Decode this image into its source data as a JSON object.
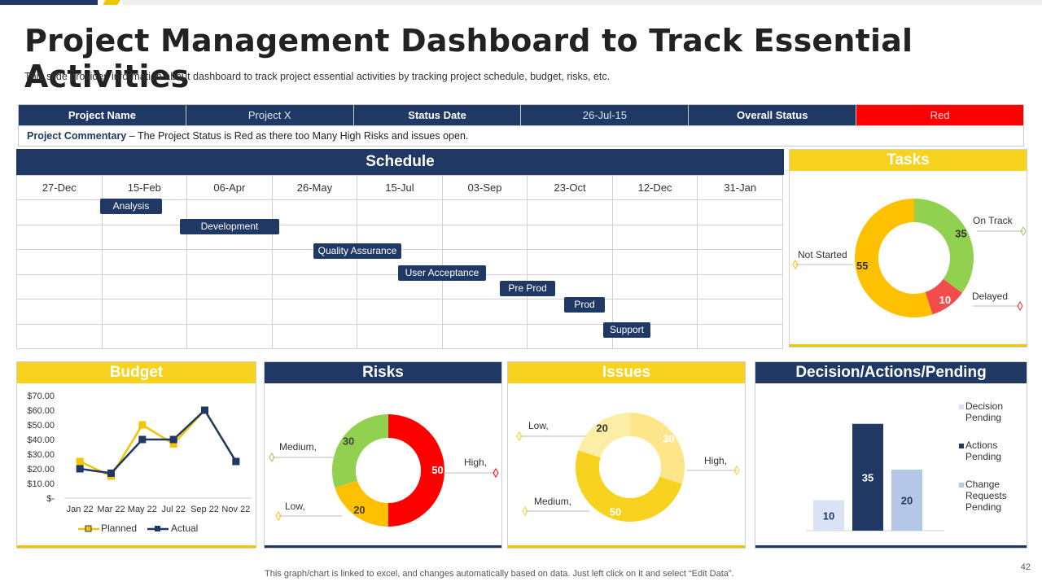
{
  "title": "Project Management Dashboard to Track Essential Activities",
  "subtitle": "This slide provides  information  about dashboard  to track project essential activities  by tracking project schedule, budget, risks, etc.",
  "status": {
    "project_name_label": "Project Name",
    "project_name_value": "Project X",
    "status_date_label": "Status Date",
    "status_date_value": "26-Jul-15",
    "overall_status_label": "Overall Status",
    "overall_status_value": "Red",
    "commentary_label": "Project Commentary",
    "commentary_text": " – The Project Status is Red as there too Many High Risks and issues open."
  },
  "colors": {
    "navy": "#1f3864",
    "yellow": "#f7d21e",
    "red": "#ff0000",
    "green": "#92d050",
    "amber": "#ffc000"
  },
  "schedule": {
    "title": "Schedule",
    "dates": [
      "27-Dec",
      "15-Feb",
      "06-Apr",
      "26-May",
      "15-Jul",
      "03-Sep",
      "23-Oct",
      "12-Dec",
      "31-Jan"
    ],
    "tasks": [
      "Analysis",
      "Development",
      "Quality Assurance",
      "User Acceptance",
      "Pre Prod",
      "Prod",
      "Support"
    ]
  },
  "tasks_panel": {
    "title": "Tasks",
    "labels": {
      "on_track": "On Track",
      "delayed": "Delayed",
      "not_started": "Not Started"
    }
  },
  "budget": {
    "title": "Budget",
    "legend": {
      "planned": "Planned",
      "actual": "Actual"
    }
  },
  "risks": {
    "title": "Risks",
    "labels": {
      "medium": "Medium,",
      "high": "High,",
      "low": "Low,"
    }
  },
  "issues": {
    "title": "Issues",
    "labels": {
      "low": "Low,",
      "high": "High,",
      "medium": "Medium,"
    }
  },
  "decisions": {
    "title": "Decision/Actions/Pending"
  },
  "chart_data": [
    {
      "type": "pie",
      "title": "Tasks",
      "slices": [
        {
          "name": "On Track",
          "value": 35,
          "color": "#92d050"
        },
        {
          "name": "Delayed",
          "value": 10,
          "color": "#f24c4c"
        },
        {
          "name": "Not Started",
          "value": 55,
          "color": "#ffc000"
        }
      ]
    },
    {
      "type": "line",
      "title": "Budget",
      "categories": [
        "Jan 22",
        "Mar 22",
        "May 22",
        "Jul 22",
        "Sep 22",
        "Nov 22"
      ],
      "y_ticks": [
        "$70.00",
        "$60.00",
        "$50.00",
        "$40.00",
        "$30.00",
        "$20.00",
        "$10.00",
        "$-"
      ],
      "ylim": [
        0,
        70
      ],
      "series": [
        {
          "name": "Planned",
          "color": "#f5c400",
          "values": [
            25,
            15,
            50,
            37,
            60,
            25
          ]
        },
        {
          "name": "Actual",
          "color": "#1f3864",
          "values": [
            20,
            17,
            40,
            40,
            60,
            25
          ]
        }
      ]
    },
    {
      "type": "pie",
      "title": "Risks",
      "slices": [
        {
          "name": "High",
          "value": 50,
          "color": "#ff0000"
        },
        {
          "name": "Low",
          "value": 20,
          "color": "#ffc000"
        },
        {
          "name": "Medium",
          "value": 30,
          "color": "#92d050"
        }
      ]
    },
    {
      "type": "pie",
      "title": "Issues",
      "slices": [
        {
          "name": "High",
          "value": 30,
          "color": "#fde68a"
        },
        {
          "name": "Medium",
          "value": 50,
          "color": "#f7d21e"
        },
        {
          "name": "Low",
          "value": 20,
          "color": "#fdeea6"
        }
      ]
    },
    {
      "type": "bar",
      "title": "Decision/Actions/Pending",
      "categories": [
        "Decision Pending",
        "Actions Pending",
        "Change Requests Pending"
      ],
      "legend_lines": [
        [
          "Decision",
          "Pending"
        ],
        [
          "Actions",
          "Pending"
        ],
        [
          "Change",
          "Requests",
          "Pending"
        ]
      ],
      "values": [
        10,
        35,
        20
      ],
      "colors": [
        "#dae3f3",
        "#1f3864",
        "#b4c7e7"
      ],
      "ylim": [
        0,
        40
      ]
    }
  ],
  "footnote": "This graph/chart is linked to excel,  and changes automatically based on data. Just left click on it and select “Edit Data”.",
  "page_number": "42"
}
